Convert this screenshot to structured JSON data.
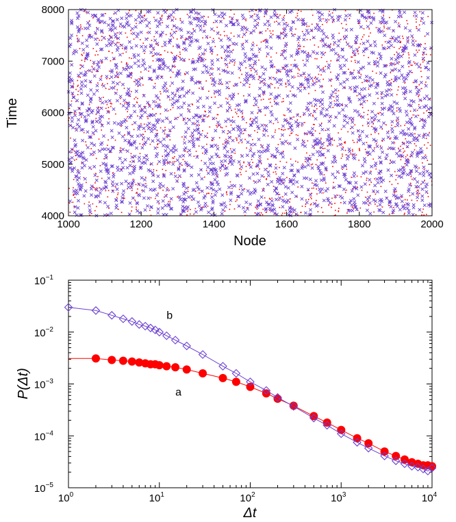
{
  "chart_data": [
    {
      "type": "scatter",
      "title": "",
      "xlabel": "Node",
      "ylabel": "Time",
      "xlim": [
        1000,
        2000
      ],
      "ylim": [
        4000,
        8000
      ],
      "xticks": [
        "1000",
        "1200",
        "1400",
        "1600",
        "1800",
        "2000"
      ],
      "yticks": [
        "4000",
        "5000",
        "6000",
        "7000",
        "8000"
      ],
      "grid": false,
      "series": [
        {
          "marker": "dot",
          "color": "#ff0000",
          "density": "dense",
          "x_range": [
            1000,
            2000
          ],
          "y_range": [
            4000,
            8000
          ]
        },
        {
          "marker": "cross",
          "color": "#6a3fd0",
          "density": "dense",
          "x_range": [
            1000,
            2000
          ],
          "y_range": [
            4000,
            8000
          ]
        }
      ]
    },
    {
      "type": "line",
      "title": "",
      "xlabel": "Δt",
      "ylabel": "P(Δt)",
      "xscale": "log",
      "yscale": "log",
      "xlim": [
        1,
        10000
      ],
      "ylim": [
        1e-05,
        0.1
      ],
      "xticks": [
        {
          "base": "10",
          "exp": "0"
        },
        {
          "base": "10",
          "exp": "1"
        },
        {
          "base": "10",
          "exp": "2"
        },
        {
          "base": "10",
          "exp": "3"
        },
        {
          "base": "10",
          "exp": "4"
        }
      ],
      "yticks": [
        {
          "base": "10",
          "exp": "−5"
        },
        {
          "base": "10",
          "exp": "−4"
        },
        {
          "base": "10",
          "exp": "−3"
        },
        {
          "base": "10",
          "exp": "−2"
        },
        {
          "base": "10",
          "exp": "−1"
        }
      ],
      "grid": false,
      "annotations": [
        {
          "text": "a",
          "x": 15,
          "y": 0.0006
        },
        {
          "text": "b",
          "x": 12,
          "y": 0.018
        }
      ],
      "series": [
        {
          "label": "a",
          "marker": "circle-filled",
          "color": "#ff0000",
          "x": [
            2,
            3,
            4,
            5,
            6,
            7,
            8,
            9,
            10,
            12,
            15,
            20,
            30,
            50,
            70,
            100,
            150,
            200,
            300,
            500,
            700,
            1000,
            1500,
            2000,
            3000,
            4000,
            5000,
            6000,
            7000,
            8000,
            9000,
            10000
          ],
          "y": [
            0.0031,
            0.0029,
            0.0028,
            0.0027,
            0.0026,
            0.0025,
            0.0024,
            0.0024,
            0.0023,
            0.0022,
            0.0021,
            0.0019,
            0.0016,
            0.0013,
            0.0011,
            0.00088,
            0.00066,
            0.00052,
            0.00038,
            0.00024,
            0.00018,
            0.00013,
            9e-05,
            7.2e-05,
            5e-05,
            4.1e-05,
            3.5e-05,
            3.1e-05,
            2.9e-05,
            2.7e-05,
            2.7e-05,
            2.6e-05
          ]
        },
        {
          "label": "b",
          "marker": "diamond-open",
          "color": "#6a3fd0",
          "x": [
            1,
            2,
            3,
            4,
            5,
            6,
            7,
            8,
            9,
            10,
            12,
            15,
            20,
            30,
            50,
            70,
            100,
            150,
            200,
            300,
            500,
            700,
            1000,
            1500,
            2000,
            3000,
            4000,
            5000,
            6000,
            7000,
            8000,
            9000,
            10000
          ],
          "y": [
            0.03,
            0.026,
            0.021,
            0.018,
            0.016,
            0.014,
            0.013,
            0.012,
            0.011,
            0.01,
            0.0085,
            0.007,
            0.0054,
            0.0037,
            0.0022,
            0.0016,
            0.0011,
            0.00075,
            0.00055,
            0.00037,
            0.00022,
            0.00016,
            0.00011,
            7.5e-05,
            5.8e-05,
            4.1e-05,
            3.3e-05,
            2.9e-05,
            2.6e-05,
            2.5e-05,
            2.3e-05,
            2.1e-05,
            2.4e-05
          ]
        }
      ]
    }
  ]
}
